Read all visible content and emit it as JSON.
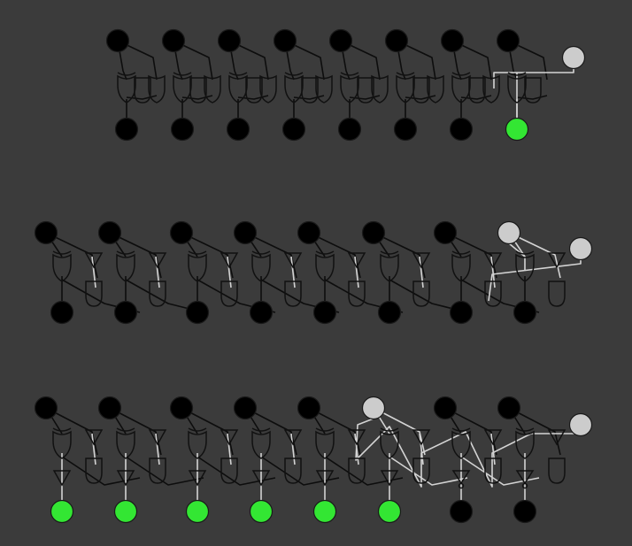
{
  "colors": {
    "background": "#3b3b3b",
    "node_off": "#000000",
    "node_on": "#33e633",
    "input_active": "#cccccc",
    "wire_off": "#0d0d0d",
    "wire_on": "#d4d4d4",
    "gate_stroke": "#111111"
  },
  "circuits": [
    {
      "name": "row-1",
      "bits": 8,
      "carry_in_state": "active",
      "outputs_state": [
        "off",
        "off",
        "off",
        "off",
        "off",
        "off",
        "off",
        "on"
      ]
    },
    {
      "name": "row-2",
      "bits": 8,
      "carry_in_state": "active",
      "top_inputs_state": [
        "off",
        "off",
        "off",
        "off",
        "off",
        "off",
        "off",
        "active"
      ],
      "outputs_state": [
        "off",
        "off",
        "off",
        "off",
        "off",
        "off",
        "off",
        "off"
      ]
    },
    {
      "name": "row-3",
      "bits": 8,
      "carry_in_state": "active",
      "top_inputs_state": [
        "off",
        "off",
        "off",
        "off",
        "off",
        "active",
        "off",
        "off"
      ],
      "outputs_state": [
        "on",
        "on",
        "on",
        "on",
        "on",
        "on",
        "off",
        "off"
      ]
    }
  ]
}
